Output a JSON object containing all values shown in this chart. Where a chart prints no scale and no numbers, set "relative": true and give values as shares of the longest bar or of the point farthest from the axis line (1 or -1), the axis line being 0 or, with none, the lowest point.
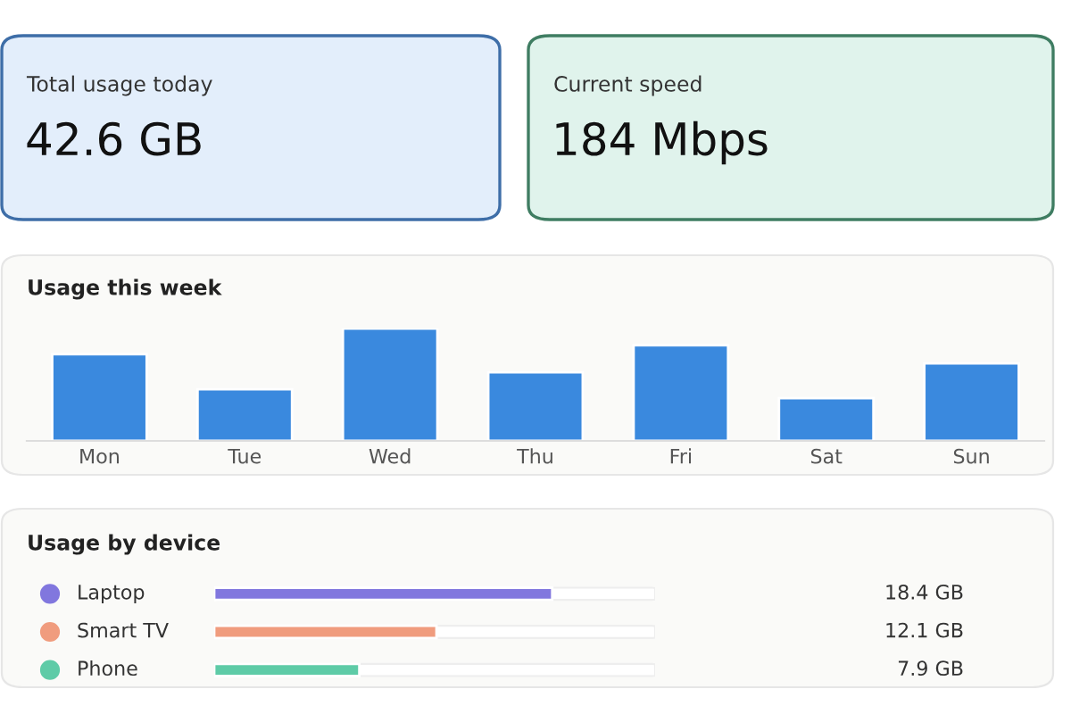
{
  "chart_data": [
    {
      "type": "other",
      "title": "Total usage today",
      "annotations": [
        "42.6 GB"
      ]
    },
    {
      "type": "other",
      "title": "Current speed",
      "annotations": [
        "184 Mbps"
      ]
    },
    {
      "type": "bar",
      "title": "Usage this week",
      "relative": true,
      "categories": [
        "Mon",
        "Tue",
        "Wed",
        "Thu",
        "Fri",
        "Sat",
        "Sun"
      ],
      "values": [
        0.77,
        0.46,
        1,
        0.61,
        0.85,
        0.38,
        0.69
      ],
      "color": "#3a89de"
    },
    {
      "type": "bar",
      "orientation": "horizontal",
      "title": "Usage by device",
      "categories": [
        "Laptop",
        "Smart TV",
        "Phone"
      ],
      "values": [
        18.4,
        12.1,
        7.9
      ],
      "colors": [
        "#8177de",
        "#f09c7e",
        "#5ecba7"
      ],
      "value_labels": [
        "18.4 GB",
        "12.1 GB",
        "7.9 GB"
      ],
      "xlim": [
        0,
        24
      ],
      "tick_labels": false
    }
  ]
}
